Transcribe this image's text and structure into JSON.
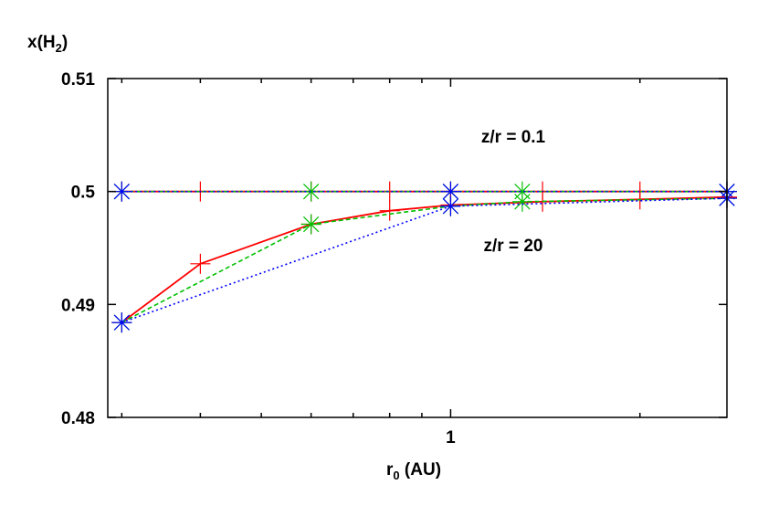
{
  "chart_data": {
    "type": "line",
    "title": "",
    "ylabel": {
      "main": "x(H",
      "sub": "2",
      "tail": ")"
    },
    "xlabel": {
      "main": "r",
      "sub": "0",
      "tail": " (AU)"
    },
    "x_scale": "log",
    "xlim": [
      0.285,
      2.75
    ],
    "ylim": [
      0.48,
      0.51
    ],
    "y_ticks": [
      {
        "value": 0.48,
        "label": "0.48"
      },
      {
        "value": 0.49,
        "label": "0.49"
      },
      {
        "value": 0.5,
        "label": "0.5"
      },
      {
        "value": 0.51,
        "label": "0.51"
      }
    ],
    "x_major_ticks": [
      {
        "value": 1,
        "label": "1"
      }
    ],
    "x_minor_ticks": [
      0.3,
      0.4,
      0.5,
      0.6,
      0.7,
      0.8,
      0.9,
      2
    ],
    "grid": false,
    "legend": "none",
    "annotations": [
      {
        "text": "z/r = 0.1",
        "x": 1.0,
        "y": 0.5045
      },
      {
        "text": "z/r = 20",
        "x": 1.0,
        "y": 0.4948
      }
    ],
    "series": [
      {
        "color": "#ff0000",
        "dash": "solid",
        "marker": "plus",
        "points": [
          [
            0.3,
            0.5
          ],
          [
            0.4,
            0.5
          ],
          [
            0.6,
            0.5
          ],
          [
            0.8,
            0.5
          ],
          [
            1.0,
            0.5
          ],
          [
            1.4,
            0.5
          ],
          [
            2.0,
            0.5
          ],
          [
            2.75,
            0.5
          ]
        ]
      },
      {
        "color": "#00c000",
        "dash": "dashed",
        "marker": "star",
        "points": [
          [
            0.3,
            0.5
          ],
          [
            0.6,
            0.5
          ],
          [
            1.0,
            0.5
          ],
          [
            1.3,
            0.5
          ],
          [
            2.75,
            0.5
          ]
        ]
      },
      {
        "color": "#0000ff",
        "dash": "dotted",
        "marker": "star",
        "points": [
          [
            0.3,
            0.5
          ],
          [
            1.0,
            0.5
          ],
          [
            2.75,
            0.5
          ]
        ]
      },
      {
        "color": "#ff0000",
        "dash": "solid",
        "marker": "plus",
        "points": [
          [
            0.3,
            0.4884
          ],
          [
            0.4,
            0.4936
          ],
          [
            0.6,
            0.4971
          ],
          [
            0.8,
            0.4983
          ],
          [
            1.0,
            0.4988
          ],
          [
            1.4,
            0.4991
          ],
          [
            2.0,
            0.4993
          ],
          [
            2.75,
            0.4995
          ]
        ]
      },
      {
        "color": "#00c000",
        "dash": "dashed",
        "marker": "star",
        "points": [
          [
            0.3,
            0.4884
          ],
          [
            0.6,
            0.4971
          ],
          [
            1.0,
            0.4987
          ],
          [
            1.3,
            0.4991
          ],
          [
            2.75,
            0.4994
          ]
        ]
      },
      {
        "color": "#0000ff",
        "dash": "dotted",
        "marker": "star",
        "points": [
          [
            0.3,
            0.4884
          ],
          [
            1.0,
            0.4987
          ],
          [
            2.75,
            0.4994
          ]
        ]
      }
    ]
  }
}
